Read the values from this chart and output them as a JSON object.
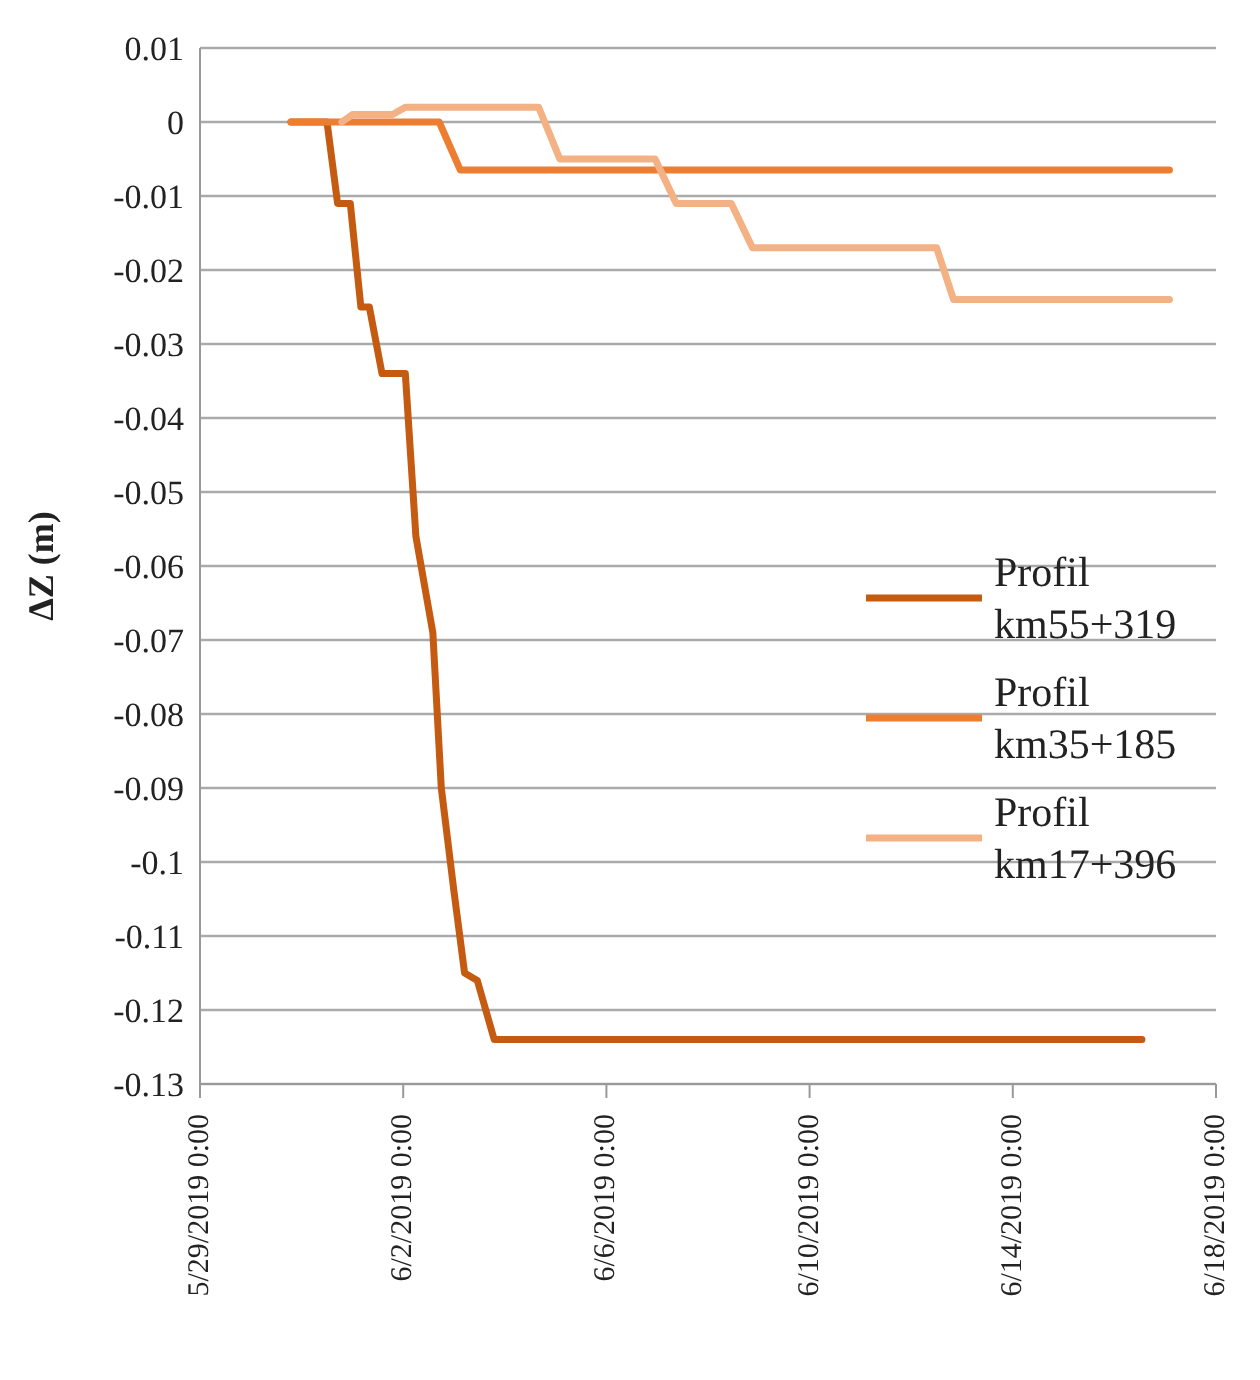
{
  "chart_data": {
    "type": "line",
    "ylabel": "ΔZ (m)",
    "xlim": [
      "2019-05-29",
      "2019-06-18"
    ],
    "xticks": [
      {
        "value": "2019-05-29",
        "label": "5/29/2019 0:00"
      },
      {
        "value": "2019-06-02",
        "label": "6/2/2019 0:00"
      },
      {
        "value": "2019-06-06",
        "label": "6/6/2019 0:00"
      },
      {
        "value": "2019-06-10",
        "label": "6/10/2019 0:00"
      },
      {
        "value": "2019-06-14",
        "label": "6/14/2019 0:00"
      },
      {
        "value": "2019-06-18",
        "label": "6/18/2019 0:00"
      }
    ],
    "ylim": [
      -0.13,
      0.01
    ],
    "yticks": [
      0.01,
      0,
      -0.01,
      -0.02,
      -0.03,
      -0.04,
      -0.05,
      -0.06,
      -0.07,
      -0.08,
      -0.09,
      -0.1,
      -0.11,
      -0.12,
      -0.13
    ],
    "grid": "y",
    "legend": "right",
    "marker": "none",
    "line_style": "solid",
    "series": [
      {
        "name": "Profil km55+319",
        "color": "#c55a11",
        "x": [
          "2019-05-30T19:00",
          "2019-05-31T12:00",
          "2019-05-31T17:00",
          "2019-05-31T23:00",
          "2019-06-01T04:00",
          "2019-06-01T08:00",
          "2019-06-01T14:00",
          "2019-06-01T17:00",
          "2019-06-02T01:00",
          "2019-06-02T06:00",
          "2019-06-02T14:00",
          "2019-06-02T18:00",
          "2019-06-03T00:00",
          "2019-06-03T05:00",
          "2019-06-03T11:00",
          "2019-06-03T19:00",
          "2019-06-16T13:00"
        ],
        "values": [
          0,
          0,
          -0.011,
          -0.011,
          -0.025,
          -0.025,
          -0.034,
          -0.034,
          -0.034,
          -0.056,
          -0.069,
          -0.09,
          -0.104,
          -0.115,
          -0.116,
          -0.124,
          -0.124
        ]
      },
      {
        "name": "Profil km35+185",
        "color": "#ed7d31",
        "x": [
          "2019-05-30T19:00",
          "2019-06-02T17:00",
          "2019-06-03T03:00",
          "2019-06-17T02:00"
        ],
        "values": [
          0,
          0,
          -0.0065,
          -0.0065
        ]
      },
      {
        "name": "Profil km17+396",
        "color": "#f4b183",
        "x": [
          "2019-05-31T19:00",
          "2019-06-01T00:00",
          "2019-06-01T19:00",
          "2019-06-02T01:00",
          "2019-06-04T16:00",
          "2019-06-05T02:00",
          "2019-06-06T23:00",
          "2019-06-07T09:00",
          "2019-06-08T11:00",
          "2019-06-08T21:00",
          "2019-06-12T12:00",
          "2019-06-12T20:00",
          "2019-06-17T02:00"
        ],
        "values": [
          0,
          0.001,
          0.001,
          0.002,
          0.002,
          -0.005,
          -0.005,
          -0.011,
          -0.011,
          -0.017,
          -0.017,
          -0.024,
          -0.024
        ]
      }
    ]
  }
}
